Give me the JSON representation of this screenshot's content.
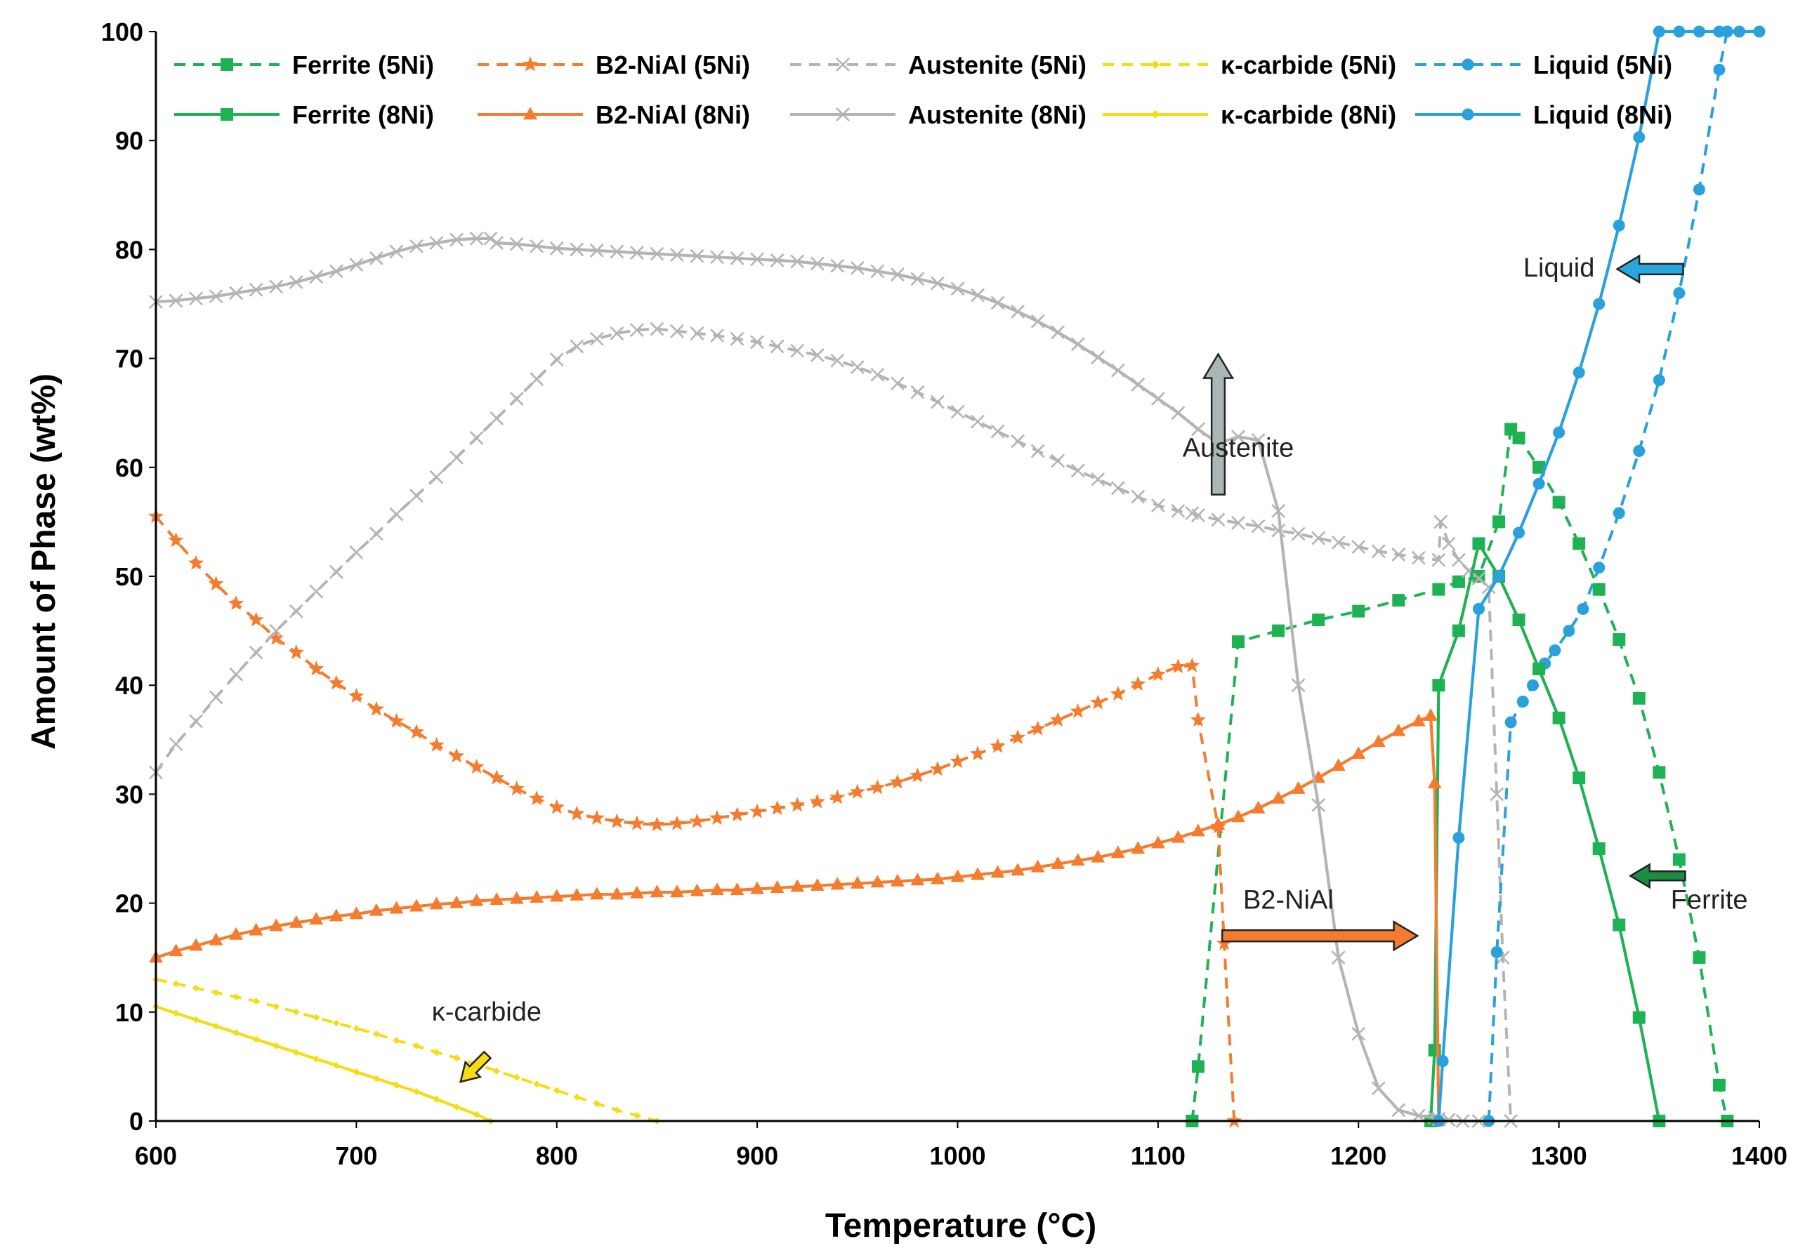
{
  "chart_data": {
    "type": "line",
    "title": "",
    "xlabel": "Temperature (°C)",
    "ylabel": "Amount of Phase (wt%)",
    "xlim": [
      600,
      1400
    ],
    "ylim": [
      0,
      100
    ],
    "xticks": [
      "600",
      "700",
      "800",
      "900",
      "1000",
      "1100",
      "1200",
      "1300",
      "1400"
    ],
    "yticks": [
      "0",
      "10",
      "20",
      "30",
      "40",
      "50",
      "60",
      "70",
      "80",
      "90",
      "100"
    ],
    "colors": {
      "ferrite": "#1fb254",
      "b2": "#f57c2e",
      "austenite": "#b4b4b4",
      "kappa": "#f5dc14",
      "liquid": "#2aa0dc",
      "ferrite_arrow": "#1e8c42",
      "austenite_arrow": "#aab5b8",
      "liquid_arrow": "#2aa6de"
    },
    "series": [
      {
        "name": "Ferrite (5Ni)",
        "phase": "ferrite",
        "dashed": true,
        "marker": "square",
        "x": [
          1117,
          1120,
          1140,
          1160,
          1180,
          1200,
          1220,
          1240,
          1250,
          1260,
          1270,
          1276,
          1280,
          1290,
          1300,
          1310,
          1320,
          1330,
          1340,
          1350,
          1360,
          1370,
          1380,
          1384
        ],
        "y": [
          0,
          5,
          44,
          45,
          46,
          46.8,
          47.8,
          48.8,
          49.5,
          50,
          55,
          63.5,
          62.7,
          60,
          56.8,
          53,
          48.8,
          44.2,
          38.8,
          32,
          24,
          15,
          3.3,
          0
        ]
      },
      {
        "name": "B2-NiAl (5Ni)",
        "phase": "b2",
        "dashed": true,
        "marker": "star",
        "x": [
          600,
          610,
          620,
          630,
          640,
          650,
          660,
          670,
          680,
          690,
          700,
          710,
          720,
          730,
          740,
          750,
          760,
          770,
          780,
          790,
          800,
          810,
          820,
          830,
          840,
          850,
          860,
          870,
          880,
          890,
          900,
          910,
          920,
          930,
          940,
          950,
          960,
          970,
          980,
          990,
          1000,
          1010,
          1020,
          1030,
          1040,
          1050,
          1060,
          1070,
          1080,
          1090,
          1100,
          1110,
          1117,
          1120,
          1130,
          1133,
          1138
        ],
        "y": [
          55.5,
          53.3,
          51.2,
          49.3,
          47.5,
          46,
          44.3,
          43,
          41.5,
          40.2,
          39,
          37.8,
          36.7,
          35.7,
          34.5,
          33.5,
          32.5,
          31.5,
          30.5,
          29.6,
          28.8,
          28.2,
          27.8,
          27.5,
          27.3,
          27.2,
          27.3,
          27.5,
          27.8,
          28.1,
          28.4,
          28.7,
          29,
          29.3,
          29.7,
          30.2,
          30.6,
          31.1,
          31.7,
          32.3,
          33,
          33.7,
          34.4,
          35.2,
          36,
          36.8,
          37.6,
          38.4,
          39.2,
          40.1,
          41,
          41.7,
          41.8,
          36.8,
          27,
          16.3,
          0
        ]
      },
      {
        "name": "Austenite (5Ni)",
        "phase": "austenite",
        "dashed": true,
        "marker": "x",
        "x": [
          600,
          610,
          620,
          630,
          640,
          650,
          660,
          670,
          680,
          690,
          700,
          710,
          720,
          730,
          740,
          750,
          760,
          770,
          780,
          790,
          800,
          810,
          820,
          830,
          840,
          850,
          860,
          870,
          880,
          890,
          900,
          910,
          920,
          930,
          940,
          950,
          960,
          970,
          980,
          990,
          1000,
          1010,
          1020,
          1030,
          1040,
          1050,
          1060,
          1070,
          1080,
          1090,
          1100,
          1110,
          1117,
          1120,
          1130,
          1140,
          1150,
          1160,
          1170,
          1180,
          1190,
          1200,
          1210,
          1220,
          1230,
          1240,
          1241,
          1245,
          1250,
          1255,
          1260,
          1265,
          1269,
          1272,
          1276
        ],
        "y": [
          32,
          34.6,
          36.7,
          38.9,
          41,
          43,
          45,
          46.8,
          48.6,
          50.4,
          52.2,
          53.9,
          55.7,
          57.4,
          59.1,
          60.9,
          62.7,
          64.5,
          66.3,
          68.1,
          69.9,
          71.1,
          71.8,
          72.3,
          72.6,
          72.7,
          72.5,
          72.3,
          72.1,
          71.8,
          71.5,
          71.1,
          70.7,
          70.3,
          69.8,
          69.2,
          68.5,
          67.7,
          66.9,
          66,
          65.1,
          64.2,
          63.3,
          62.4,
          61.5,
          60.6,
          59.7,
          58.9,
          58.1,
          57.3,
          56.5,
          56,
          55.8,
          55.6,
          55.2,
          54.9,
          54.6,
          54.2,
          53.9,
          53.5,
          53.1,
          52.7,
          52.3,
          52,
          51.7,
          51.5,
          55,
          53,
          51.5,
          50.5,
          49.8,
          49,
          30,
          15,
          0
        ]
      },
      {
        "name": "κ-carbide (5Ni)",
        "phase": "kappa",
        "dashed": true,
        "marker": "diamond",
        "x": [
          600,
          610,
          620,
          630,
          640,
          650,
          660,
          670,
          680,
          690,
          700,
          710,
          720,
          730,
          740,
          750,
          760,
          770,
          780,
          790,
          800,
          810,
          820,
          830,
          840,
          850
        ],
        "y": [
          13,
          12.6,
          12.2,
          11.8,
          11.4,
          11,
          10.5,
          10,
          9.5,
          9,
          8.5,
          8,
          7.4,
          6.9,
          6.3,
          5.8,
          5.2,
          4.6,
          4,
          3.4,
          2.8,
          2.2,
          1.6,
          1,
          0.5,
          0
        ]
      },
      {
        "name": "Liquid (5Ni)",
        "phase": "liquid",
        "dashed": true,
        "marker": "circle",
        "x": [
          1265,
          1269,
          1276,
          1282,
          1287,
          1293,
          1298,
          1305,
          1312,
          1320,
          1330,
          1340,
          1350,
          1360,
          1370,
          1380,
          1384
        ],
        "y": [
          0,
          15.5,
          36.6,
          38.5,
          40,
          42,
          43.2,
          45,
          47,
          50.8,
          55.8,
          61.5,
          68,
          76,
          85.5,
          96.5,
          100
        ]
      },
      {
        "name": "Ferrite (8Ni)",
        "phase": "ferrite",
        "dashed": false,
        "marker": "square",
        "x": [
          1236,
          1238,
          1240,
          1250,
          1260,
          1270,
          1280,
          1290,
          1300,
          1310,
          1320,
          1330,
          1340,
          1350
        ],
        "y": [
          0,
          6.5,
          40,
          45,
          53,
          50,
          46,
          41.5,
          37,
          31.5,
          25,
          18,
          9.5,
          0
        ]
      },
      {
        "name": "B2-NiAl (8Ni)",
        "phase": "b2",
        "dashed": false,
        "marker": "triangle",
        "x": [
          600,
          610,
          620,
          630,
          640,
          650,
          660,
          670,
          680,
          690,
          700,
          710,
          720,
          730,
          740,
          750,
          760,
          770,
          780,
          790,
          800,
          810,
          820,
          830,
          840,
          850,
          860,
          870,
          880,
          890,
          900,
          910,
          920,
          930,
          940,
          950,
          960,
          970,
          980,
          990,
          1000,
          1010,
          1020,
          1030,
          1040,
          1050,
          1060,
          1070,
          1080,
          1090,
          1100,
          1110,
          1120,
          1130,
          1140,
          1150,
          1160,
          1170,
          1180,
          1190,
          1200,
          1210,
          1220,
          1230,
          1236,
          1238,
          1240
        ],
        "y": [
          15,
          15.6,
          16.1,
          16.6,
          17.1,
          17.5,
          17.9,
          18.2,
          18.5,
          18.8,
          19,
          19.3,
          19.5,
          19.7,
          19.9,
          20,
          20.2,
          20.3,
          20.4,
          20.5,
          20.6,
          20.7,
          20.8,
          20.8,
          20.9,
          21,
          21,
          21.1,
          21.2,
          21.2,
          21.3,
          21.4,
          21.5,
          21.6,
          21.7,
          21.8,
          21.9,
          22,
          22.1,
          22.2,
          22.4,
          22.6,
          22.8,
          23,
          23.3,
          23.6,
          23.9,
          24.2,
          24.6,
          25,
          25.5,
          26,
          26.6,
          27.2,
          27.9,
          28.7,
          29.6,
          30.5,
          31.5,
          32.6,
          33.7,
          34.8,
          35.8,
          36.7,
          37.2,
          31,
          0
        ]
      },
      {
        "name": "Austenite (8Ni)",
        "phase": "austenite",
        "dashed": false,
        "marker": "x",
        "x": [
          600,
          610,
          620,
          630,
          640,
          650,
          660,
          670,
          680,
          690,
          700,
          710,
          720,
          730,
          740,
          750,
          760,
          767,
          770,
          780,
          790,
          800,
          810,
          820,
          830,
          840,
          850,
          860,
          870,
          880,
          890,
          900,
          910,
          920,
          930,
          940,
          950,
          960,
          970,
          980,
          990,
          1000,
          1010,
          1020,
          1030,
          1040,
          1050,
          1060,
          1070,
          1080,
          1090,
          1100,
          1110,
          1120,
          1130,
          1140,
          1150,
          1160,
          1170,
          1180,
          1190,
          1200,
          1210,
          1220,
          1230,
          1238,
          1240,
          1245,
          1252,
          1260
        ],
        "y": [
          75.2,
          75.3,
          75.5,
          75.7,
          76,
          76.3,
          76.6,
          77,
          77.5,
          78,
          78.6,
          79.2,
          79.8,
          80.3,
          80.6,
          80.9,
          81,
          81,
          80.6,
          80.5,
          80.3,
          80.1,
          80,
          79.9,
          79.8,
          79.7,
          79.6,
          79.5,
          79.4,
          79.3,
          79.2,
          79.1,
          79,
          78.9,
          78.7,
          78.5,
          78.3,
          78,
          77.7,
          77.3,
          76.9,
          76.4,
          75.8,
          75.1,
          74.3,
          73.4,
          72.4,
          71.3,
          70.1,
          68.9,
          67.6,
          66.3,
          65,
          63.5,
          62.2,
          62.8,
          62.5,
          56,
          40,
          29,
          15,
          8,
          3,
          1,
          0.5,
          0.3,
          0.2,
          0.1,
          0,
          0
        ]
      },
      {
        "name": "κ-carbide (8Ni)",
        "phase": "kappa",
        "dashed": false,
        "marker": "diamond",
        "x": [
          600,
          610,
          620,
          630,
          640,
          650,
          660,
          670,
          680,
          690,
          700,
          710,
          720,
          730,
          740,
          750,
          760,
          767
        ],
        "y": [
          10.5,
          9.9,
          9.3,
          8.7,
          8.1,
          7.5,
          6.9,
          6.3,
          5.7,
          5.1,
          4.5,
          3.9,
          3.3,
          2.7,
          2,
          1.3,
          0.6,
          0
        ]
      },
      {
        "name": "Liquid (8Ni)",
        "phase": "liquid",
        "dashed": false,
        "marker": "circle",
        "x": [
          1240,
          1242,
          1250,
          1260,
          1270,
          1280,
          1290,
          1300,
          1310,
          1320,
          1330,
          1340,
          1350,
          1360,
          1370,
          1380,
          1390,
          1400
        ],
        "y": [
          0,
          5.5,
          26,
          47,
          50,
          54,
          58.5,
          63.2,
          68.7,
          75,
          82.2,
          90.3,
          100,
          100,
          100,
          100,
          100,
          100
        ]
      }
    ],
    "annotations": [
      {
        "label": "Liquid",
        "x": 1300,
        "y": 77.5
      },
      {
        "label": "Austenite",
        "x": 1140,
        "y": 61
      },
      {
        "label": "B2-NiAl",
        "x": 1165,
        "y": 19.5
      },
      {
        "label": "Ferrite",
        "x": 1375,
        "y": 19.5
      },
      {
        "label": "κ-carbide",
        "x": 765,
        "y": 9.2
      }
    ],
    "legend": "top"
  }
}
